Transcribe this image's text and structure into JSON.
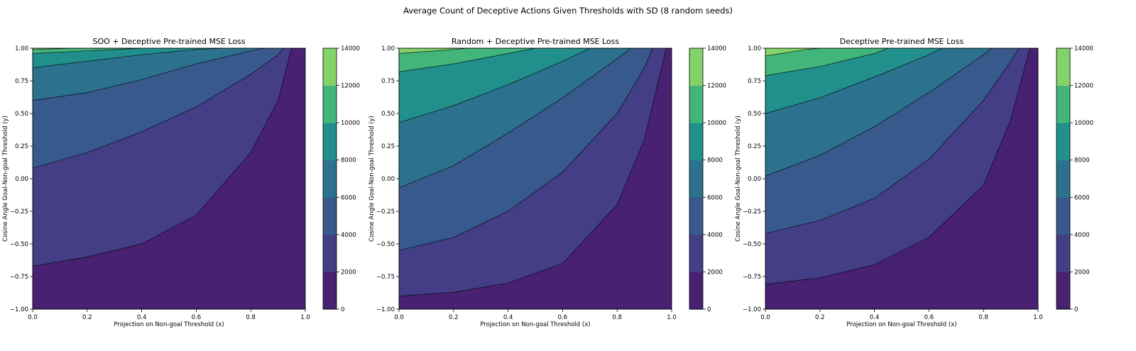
{
  "figure": {
    "title": "Average Count of Deceptive Actions Given Thresholds with SD (8 random seeds)"
  },
  "chart_data": [
    {
      "type": "contour",
      "title": "SOO + Deceptive Pre-trained MSE Loss",
      "xlabel": "Projection on Non-goal Threshold (x)",
      "ylabel": "Cosine Angle Goal-Non-goal Threshold (y)",
      "xlim": [
        0.0,
        1.0
      ],
      "ylim": [
        -1.0,
        1.0
      ],
      "x_ticks": [
        "0.0",
        "0.2",
        "0.4",
        "0.6",
        "0.8",
        "1.0"
      ],
      "y_ticks": [
        "1.00",
        "0.75",
        "0.50",
        "0.25",
        "0.00",
        "−0.25",
        "−0.50",
        "−0.75",
        "−1.00"
      ],
      "colorbar_ticks": [
        "14000",
        "12000",
        "10000",
        "8000",
        "6000",
        "4000",
        "2000",
        "0"
      ],
      "colorbar_range": [
        0,
        14000
      ],
      "levels": [
        0,
        2000,
        4000,
        6000,
        8000,
        10000,
        12000,
        14000
      ],
      "contour_boundaries": [
        {
          "level": 2000,
          "points": [
            [
              0.0,
              -0.67
            ],
            [
              0.2,
              -0.6
            ],
            [
              0.4,
              -0.5
            ],
            [
              0.6,
              -0.28
            ],
            [
              0.8,
              0.2
            ],
            [
              0.9,
              0.6
            ],
            [
              0.95,
              1.0
            ]
          ]
        },
        {
          "level": 4000,
          "points": [
            [
              0.0,
              0.08
            ],
            [
              0.2,
              0.2
            ],
            [
              0.4,
              0.36
            ],
            [
              0.6,
              0.55
            ],
            [
              0.8,
              0.8
            ],
            [
              0.9,
              0.95
            ],
            [
              0.92,
              1.0
            ]
          ]
        },
        {
          "level": 6000,
          "points": [
            [
              0.0,
              0.6
            ],
            [
              0.2,
              0.66
            ],
            [
              0.4,
              0.76
            ],
            [
              0.6,
              0.88
            ],
            [
              0.8,
              0.98
            ],
            [
              0.85,
              1.0
            ]
          ]
        },
        {
          "level": 8000,
          "points": [
            [
              0.0,
              0.85
            ],
            [
              0.2,
              0.9
            ],
            [
              0.4,
              0.95
            ],
            [
              0.6,
              0.99
            ],
            [
              0.7,
              1.0
            ]
          ]
        },
        {
          "level": 10000,
          "points": [
            [
              0.0,
              0.96
            ],
            [
              0.2,
              0.98
            ],
            [
              0.4,
              1.0
            ]
          ]
        },
        {
          "level": 12000,
          "points": [
            [
              0.0,
              0.99
            ],
            [
              0.15,
              1.0
            ]
          ]
        }
      ]
    },
    {
      "type": "contour",
      "title": "Random + Deceptive Pre-trained MSE Loss",
      "xlabel": "Projection on Non-goal Threshold (x)",
      "ylabel": "Cosine Angle Goal-Non-goal Threshold (y)",
      "xlim": [
        0.0,
        1.0
      ],
      "ylim": [
        -1.0,
        1.0
      ],
      "x_ticks": [
        "0.0",
        "0.2",
        "0.4",
        "0.6",
        "0.8",
        "1.0"
      ],
      "y_ticks": [
        "1.00",
        "0.75",
        "0.50",
        "0.25",
        "0.00",
        "−0.25",
        "−0.50",
        "−0.75",
        "−1.00"
      ],
      "colorbar_ticks": [
        "14000",
        "12000",
        "10000",
        "8000",
        "6000",
        "4000",
        "2000",
        "0"
      ],
      "colorbar_range": [
        0,
        14000
      ],
      "levels": [
        0,
        2000,
        4000,
        6000,
        8000,
        10000,
        12000,
        14000
      ],
      "contour_boundaries": [
        {
          "level": 2000,
          "points": [
            [
              0.0,
              -0.9
            ],
            [
              0.2,
              -0.87
            ],
            [
              0.4,
              -0.8
            ],
            [
              0.6,
              -0.65
            ],
            [
              0.8,
              -0.2
            ],
            [
              0.9,
              0.3
            ],
            [
              0.98,
              1.0
            ]
          ]
        },
        {
          "level": 4000,
          "points": [
            [
              0.0,
              -0.55
            ],
            [
              0.2,
              -0.45
            ],
            [
              0.4,
              -0.25
            ],
            [
              0.6,
              0.05
            ],
            [
              0.8,
              0.5
            ],
            [
              0.9,
              0.85
            ],
            [
              0.93,
              1.0
            ]
          ]
        },
        {
          "level": 6000,
          "points": [
            [
              0.0,
              -0.07
            ],
            [
              0.2,
              0.1
            ],
            [
              0.4,
              0.35
            ],
            [
              0.6,
              0.62
            ],
            [
              0.8,
              0.92
            ],
            [
              0.85,
              1.0
            ]
          ]
        },
        {
          "level": 8000,
          "points": [
            [
              0.0,
              0.43
            ],
            [
              0.2,
              0.56
            ],
            [
              0.4,
              0.72
            ],
            [
              0.6,
              0.9
            ],
            [
              0.7,
              1.0
            ]
          ]
        },
        {
          "level": 10000,
          "points": [
            [
              0.0,
              0.82
            ],
            [
              0.2,
              0.88
            ],
            [
              0.4,
              0.96
            ],
            [
              0.5,
              1.0
            ]
          ]
        },
        {
          "level": 12000,
          "points": [
            [
              0.0,
              0.96
            ],
            [
              0.2,
              0.99
            ],
            [
              0.25,
              1.0
            ]
          ]
        }
      ]
    },
    {
      "type": "contour",
      "title": "Deceptive Pre-trained MSE Loss",
      "xlabel": "Projection on Non-goal Threshold (x)",
      "ylabel": "Cosine Angle Goal-Non-goal Threshold (y)",
      "xlim": [
        0.0,
        1.0
      ],
      "ylim": [
        -1.0,
        1.0
      ],
      "x_ticks": [
        "0.0",
        "0.2",
        "0.4",
        "0.6",
        "0.8",
        "1.0"
      ],
      "y_ticks": [
        "1.00",
        "0.75",
        "0.50",
        "0.25",
        "0.00",
        "−0.25",
        "−0.50",
        "−0.75",
        "−1.00"
      ],
      "colorbar_ticks": [
        "14000",
        "12000",
        "10000",
        "8000",
        "6000",
        "4000",
        "2000",
        "0"
      ],
      "colorbar_range": [
        0,
        14000
      ],
      "levels": [
        0,
        2000,
        4000,
        6000,
        8000,
        10000,
        12000,
        14000
      ],
      "contour_boundaries": [
        {
          "level": 2000,
          "points": [
            [
              0.0,
              -0.81
            ],
            [
              0.2,
              -0.76
            ],
            [
              0.4,
              -0.66
            ],
            [
              0.6,
              -0.45
            ],
            [
              0.8,
              -0.05
            ],
            [
              0.9,
              0.45
            ],
            [
              0.97,
              1.0
            ]
          ]
        },
        {
          "level": 4000,
          "points": [
            [
              0.0,
              -0.42
            ],
            [
              0.2,
              -0.32
            ],
            [
              0.4,
              -0.15
            ],
            [
              0.6,
              0.15
            ],
            [
              0.8,
              0.6
            ],
            [
              0.9,
              0.9
            ],
            [
              0.93,
              1.0
            ]
          ]
        },
        {
          "level": 6000,
          "points": [
            [
              0.0,
              0.02
            ],
            [
              0.2,
              0.18
            ],
            [
              0.4,
              0.4
            ],
            [
              0.6,
              0.66
            ],
            [
              0.8,
              0.95
            ],
            [
              0.83,
              1.0
            ]
          ]
        },
        {
          "level": 8000,
          "points": [
            [
              0.0,
              0.5
            ],
            [
              0.2,
              0.62
            ],
            [
              0.4,
              0.78
            ],
            [
              0.6,
              0.95
            ],
            [
              0.65,
              1.0
            ]
          ]
        },
        {
          "level": 10000,
          "points": [
            [
              0.0,
              0.79
            ],
            [
              0.2,
              0.86
            ],
            [
              0.4,
              0.96
            ],
            [
              0.45,
              1.0
            ]
          ]
        },
        {
          "level": 12000,
          "points": [
            [
              0.0,
              0.94
            ],
            [
              0.15,
              0.99
            ],
            [
              0.2,
              1.0
            ]
          ]
        }
      ]
    }
  ],
  "palette": [
    "#482173",
    "#433e85",
    "#38598c",
    "#2c728e",
    "#21908d",
    "#42b57b",
    "#84d36a",
    "#dde318"
  ]
}
